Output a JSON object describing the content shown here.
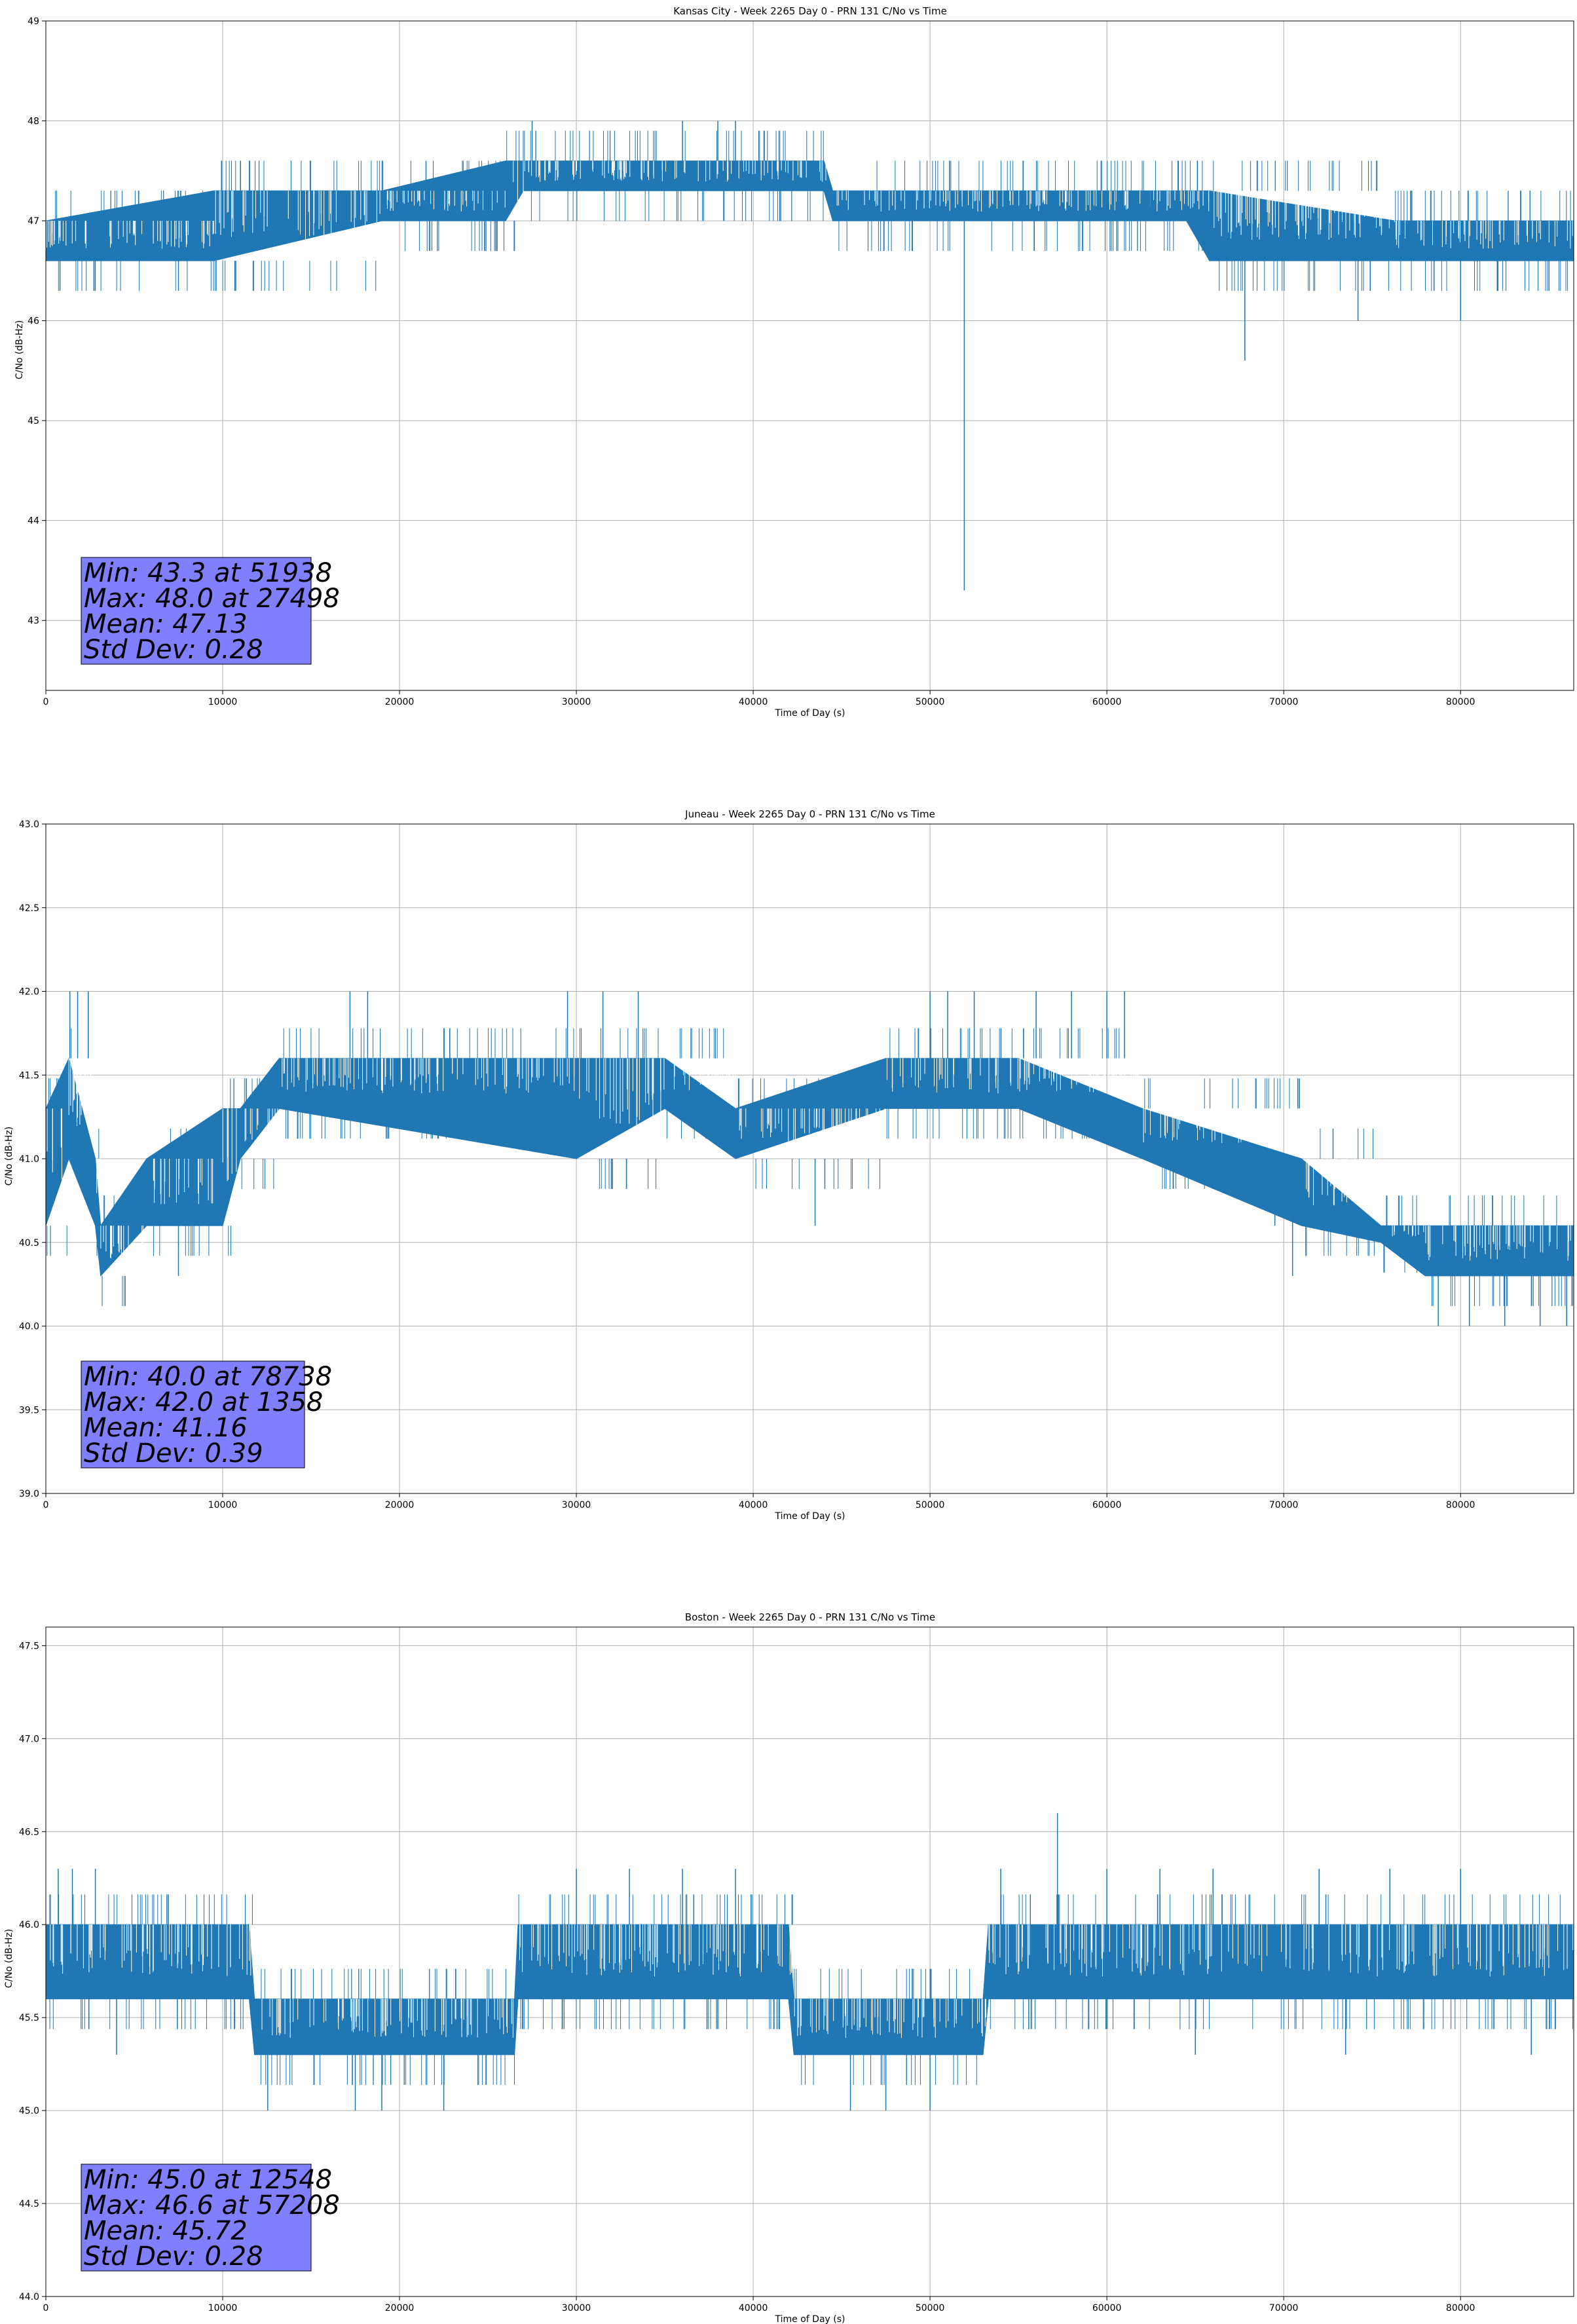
{
  "chart_data": [
    {
      "type": "line",
      "title": "Kansas City - Week 2265 Day 0 - PRN 131 C/No vs Time",
      "xlabel": "Time of Day (s)",
      "ylabel": "C/No (dB-Hz)",
      "xlim": [
        0,
        86400
      ],
      "ylim": [
        42.3,
        49
      ],
      "xticks": [
        0,
        10000,
        20000,
        30000,
        40000,
        50000,
        60000,
        70000,
        80000
      ],
      "yticks": [
        43,
        44,
        45,
        46,
        47,
        48,
        49
      ],
      "ytick_decimals": 0,
      "grid": true,
      "series": [
        {
          "color": "#1f77b4",
          "band": [
            [
              0,
              46.6,
              47.0
            ],
            [
              9500,
              46.6,
              47.3
            ],
            [
              19000,
              47.0,
              47.3
            ],
            [
              26000,
              47.0,
              47.6
            ],
            [
              27000,
              47.3,
              47.6
            ],
            [
              44000,
              47.3,
              47.6
            ],
            [
              44500,
              47.0,
              47.3
            ],
            [
              64500,
              47.0,
              47.3
            ],
            [
              65800,
              46.6,
              47.3
            ],
            [
              76300,
              46.6,
              47.0
            ],
            [
              86400,
              46.6,
              47.0
            ]
          ],
          "spikes": [
            [
              800,
              46.3
            ],
            [
              7500,
              46.3
            ],
            [
              27498,
              48.0
            ],
            [
              36000,
              48.0
            ],
            [
              38000,
              48.0
            ],
            [
              39000,
              48.0
            ],
            [
              51938,
              43.3
            ],
            [
              67800,
              45.6
            ],
            [
              68500,
              47.6
            ],
            [
              74200,
              46.0
            ],
            [
              80000,
              46.0
            ],
            [
              85000,
              46.3
            ],
            [
              3200,
              46.6
            ],
            [
              14000,
              46.6
            ],
            [
              21500,
              47.6
            ],
            [
              33000,
              47.3
            ],
            [
              41500,
              47.0
            ],
            [
              60500,
              47.3
            ],
            [
              62500,
              47.3
            ],
            [
              78500,
              46.3
            ]
          ]
        }
      ],
      "stats_lines": [
        "Min: 43.3 at 51938",
        "Max: 48.0 at 27498",
        "Mean: 47.13",
        "Std Dev: 0.28"
      ]
    },
    {
      "type": "line",
      "title": "Juneau - Week 2265 Day 0 - PRN 131 C/No vs Time",
      "xlabel": "Time of Day (s)",
      "ylabel": "C/No (dB-Hz)",
      "xlim": [
        0,
        86400
      ],
      "ylim": [
        39.0,
        43.0
      ],
      "xticks": [
        0,
        10000,
        20000,
        30000,
        40000,
        50000,
        60000,
        70000,
        80000
      ],
      "yticks": [
        39.0,
        39.5,
        40.0,
        40.5,
        41.0,
        41.5,
        42.0,
        42.5,
        43.0
      ],
      "ytick_decimals": 1,
      "grid": true,
      "series": [
        {
          "color": "#1f77b4",
          "band": [
            [
              0,
              40.6,
              41.3
            ],
            [
              1300,
              41.0,
              41.6
            ],
            [
              2800,
              40.6,
              41.0
            ],
            [
              3100,
              40.3,
              40.6
            ],
            [
              5700,
              40.6,
              41.0
            ],
            [
              10000,
              40.6,
              41.3
            ],
            [
              11000,
              41.0,
              41.3
            ],
            [
              13200,
              41.3,
              41.6
            ],
            [
              30000,
              41.0,
              41.6
            ],
            [
              35000,
              41.3,
              41.6
            ],
            [
              39000,
              41.0,
              41.3
            ],
            [
              47500,
              41.3,
              41.6
            ],
            [
              55000,
              41.3,
              41.6
            ],
            [
              62000,
              41.0,
              41.3
            ],
            [
              71000,
              40.6,
              41.0
            ],
            [
              75500,
              40.5,
              40.6
            ],
            [
              78000,
              40.3,
              40.6
            ],
            [
              86400,
              40.3,
              40.6
            ]
          ],
          "spikes": [
            [
              1358,
              42.0
            ],
            [
              1800,
              42.0
            ],
            [
              2400,
              42.0
            ],
            [
              7500,
              40.3
            ],
            [
              17200,
              42.0
            ],
            [
              18200,
              42.0
            ],
            [
              29500,
              42.0
            ],
            [
              31500,
              42.0
            ],
            [
              33500,
              42.0
            ],
            [
              43500,
              40.6
            ],
            [
              50000,
              42.0
            ],
            [
              51000,
              42.0
            ],
            [
              52500,
              42.0
            ],
            [
              56000,
              42.0
            ],
            [
              58000,
              42.0
            ],
            [
              60000,
              42.0
            ],
            [
              61000,
              42.0
            ],
            [
              69500,
              40.6
            ],
            [
              70500,
              40.3
            ],
            [
              78738,
              40.0
            ],
            [
              80500,
              40.0
            ],
            [
              82500,
              40.0
            ],
            [
              84500,
              40.0
            ],
            [
              86000,
              40.0
            ]
          ]
        }
      ],
      "stats_lines": [
        "Min: 40.0 at 78738",
        "Max: 42.0 at 1358",
        "Mean: 41.16",
        "Std Dev: 0.39"
      ]
    },
    {
      "type": "line",
      "title": "Boston - Week 2265 Day 0 - PRN 131 C/No vs Time",
      "xlabel": "Time of Day (s)",
      "ylabel": "C/No (dB-Hz)",
      "xlim": [
        0,
        86400
      ],
      "ylim": [
        44.0,
        47.6
      ],
      "xticks": [
        0,
        10000,
        20000,
        30000,
        40000,
        50000,
        60000,
        70000,
        80000
      ],
      "yticks": [
        44.0,
        44.5,
        45.0,
        45.5,
        46.0,
        46.5,
        47.0,
        47.5
      ],
      "ytick_decimals": 1,
      "grid": true,
      "series": [
        {
          "color": "#1f77b4",
          "band": [
            [
              0,
              45.6,
              46.0
            ],
            [
              11500,
              45.6,
              46.0
            ],
            [
              11800,
              45.3,
              45.6
            ],
            [
              26500,
              45.3,
              45.6
            ],
            [
              26700,
              45.6,
              46.0
            ],
            [
              42000,
              45.6,
              46.0
            ],
            [
              42300,
              45.3,
              45.6
            ],
            [
              53000,
              45.3,
              45.6
            ],
            [
              53300,
              45.6,
              46.0
            ],
            [
              86400,
              45.6,
              46.0
            ]
          ],
          "spikes": [
            [
              700,
              46.3
            ],
            [
              1500,
              46.3
            ],
            [
              2800,
              46.3
            ],
            [
              12548,
              45.0
            ],
            [
              17500,
              45.0
            ],
            [
              19000,
              45.0
            ],
            [
              22500,
              45.0
            ],
            [
              30000,
              46.3
            ],
            [
              33000,
              46.3
            ],
            [
              36000,
              46.3
            ],
            [
              39000,
              46.3
            ],
            [
              45500,
              45.0
            ],
            [
              47500,
              45.0
            ],
            [
              50000,
              45.0
            ],
            [
              54000,
              46.3
            ],
            [
              57208,
              46.6
            ],
            [
              60000,
              46.3
            ],
            [
              63000,
              46.3
            ],
            [
              66000,
              46.3
            ],
            [
              72000,
              46.3
            ],
            [
              76000,
              46.3
            ],
            [
              80000,
              46.3
            ],
            [
              4000,
              45.3
            ],
            [
              65000,
              45.3
            ],
            [
              73500,
              45.3
            ],
            [
              84000,
              45.3
            ]
          ]
        }
      ],
      "stats_lines": [
        "Min: 45.0 at 12548",
        "Max: 46.6 at 57208",
        "Mean: 45.72",
        "Std Dev: 0.28"
      ]
    }
  ],
  "colors": {
    "line": "#1f77b4",
    "grid": "#b0b0b0",
    "stats_box": "#8080ff"
  }
}
